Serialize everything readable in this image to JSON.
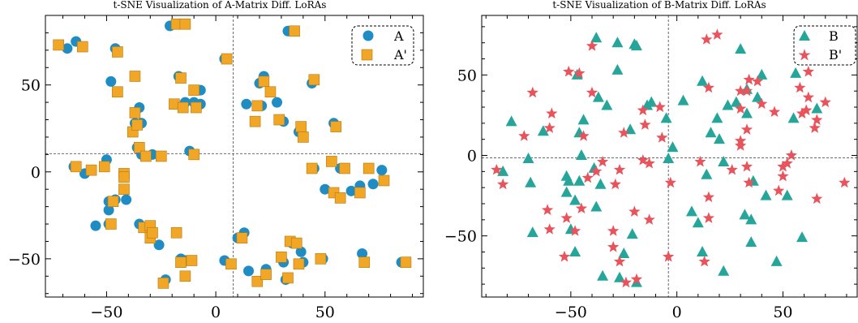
{
  "chart_data": [
    {
      "type": "scatter",
      "title": "t-SNE Visualization of A-Matrix Diff. LoRAs",
      "xlim": [
        -78,
        95
      ],
      "ylim": [
        -72,
        90
      ],
      "xticks": [
        -50,
        0,
        50
      ],
      "yticks": [
        -50,
        0,
        50
      ],
      "xlabel": "",
      "ylabel": "",
      "grid": false,
      "legend_placement": "top-right",
      "reference_lines": {
        "x": 8,
        "y": 10.5
      },
      "series": [
        {
          "name": "A",
          "marker": "circle",
          "color": "#1f8dc4",
          "points": [
            [
              -68,
              71
            ],
            [
              -64,
              75
            ],
            [
              -46,
              71
            ],
            [
              -48,
              52
            ],
            [
              -35,
              37
            ],
            [
              -37,
              28
            ],
            [
              -34,
              28
            ],
            [
              -34,
              10
            ],
            [
              -29,
              10
            ],
            [
              -36,
              14
            ],
            [
              -21,
              84
            ],
            [
              -17,
              55
            ],
            [
              -14,
              40
            ],
            [
              -12,
              12
            ],
            [
              -10,
              40
            ],
            [
              -7,
              47
            ],
            [
              -7,
              39
            ],
            [
              4,
              65
            ],
            [
              14,
              39
            ],
            [
              20,
              51
            ],
            [
              21,
              38
            ],
            [
              22,
              55
            ],
            [
              28,
              40
            ],
            [
              31,
              29
            ],
            [
              33,
              81
            ],
            [
              38,
              23
            ],
            [
              44,
              51
            ],
            [
              45,
              2
            ],
            [
              50,
              -10
            ],
            [
              54,
              28
            ],
            [
              57,
              2
            ],
            [
              62,
              -11
            ],
            [
              66,
              -8
            ],
            [
              72,
              -7
            ],
            [
              76,
              1
            ],
            [
              -65,
              3
            ],
            [
              -60,
              -1
            ],
            [
              -50,
              7
            ],
            [
              -49,
              -17
            ],
            [
              -49,
              -22
            ],
            [
              -49,
              -30
            ],
            [
              -41,
              -16
            ],
            [
              -46,
              -16
            ],
            [
              -55,
              -31
            ],
            [
              -35,
              -30
            ],
            [
              -26,
              -42
            ],
            [
              -23,
              -62
            ],
            [
              -16,
              -50
            ],
            [
              -14,
              -51
            ],
            [
              4,
              -51
            ],
            [
              10,
              -38
            ],
            [
              13,
              -35
            ],
            [
              15,
              -57
            ],
            [
              23,
              -56
            ],
            [
              31,
              -52
            ],
            [
              32,
              -62
            ],
            [
              35,
              -41
            ],
            [
              39,
              -46
            ],
            [
              40,
              -52
            ],
            [
              49,
              -50
            ],
            [
              67,
              -47
            ],
            [
              85,
              -52
            ]
          ]
        },
        {
          "name": "A'",
          "marker": "square",
          "color": "#f2a626",
          "points": [
            [
              -72,
              73
            ],
            [
              -61,
              72
            ],
            [
              -45,
              69
            ],
            [
              -37,
              55
            ],
            [
              -45,
              46
            ],
            [
              -38,
              23
            ],
            [
              -36,
              27
            ],
            [
              -37,
              34
            ],
            [
              -35,
              14
            ],
            [
              -32,
              9
            ],
            [
              -25,
              9
            ],
            [
              -18,
              85
            ],
            [
              -14,
              85
            ],
            [
              -19,
              39
            ],
            [
              -16,
              54
            ],
            [
              -15,
              37
            ],
            [
              -10,
              47
            ],
            [
              -9,
              37
            ],
            [
              -10,
              10
            ],
            [
              5,
              65
            ],
            [
              18,
              29
            ],
            [
              19,
              38
            ],
            [
              22,
              52
            ],
            [
              25,
              46
            ],
            [
              29,
              30
            ],
            [
              36,
              81
            ],
            [
              39,
              26
            ],
            [
              40,
              20
            ],
            [
              44,
              2
            ],
            [
              45,
              53
            ],
            [
              53,
              6
            ],
            [
              55,
              26
            ],
            [
              54,
              -12
            ],
            [
              57,
              -15
            ],
            [
              59,
              2
            ],
            [
              66,
              -12
            ],
            [
              70,
              2
            ],
            [
              77,
              -5
            ],
            [
              -64,
              3
            ],
            [
              -57,
              1
            ],
            [
              -51,
              3
            ],
            [
              -47,
              -17
            ],
            [
              -48,
              -30
            ],
            [
              -42,
              -1
            ],
            [
              -42,
              -10
            ],
            [
              -42,
              -3
            ],
            [
              -33,
              -32
            ],
            [
              -30,
              -31
            ],
            [
              -30,
              -38
            ],
            [
              -29,
              -35
            ],
            [
              -24,
              -64
            ],
            [
              -18,
              -35
            ],
            [
              -16,
              -52
            ],
            [
              -14,
              -60
            ],
            [
              -11,
              -51
            ],
            [
              7,
              -53
            ],
            [
              12,
              -38
            ],
            [
              19,
              -63
            ],
            [
              23,
              -59
            ],
            [
              30,
              -49
            ],
            [
              33,
              -61
            ],
            [
              34,
              -40
            ],
            [
              37,
              -41
            ],
            [
              38,
              -53
            ],
            [
              48,
              -50
            ],
            [
              68,
              -52
            ],
            [
              87,
              -52
            ]
          ]
        }
      ]
    },
    {
      "type": "scatter",
      "title": "t-SNE Visualization of B-Matrix Diff. LoRAs",
      "xlim": [
        -92,
        85
      ],
      "ylim": [
        -88,
        87
      ],
      "xticks": [
        -50,
        0,
        50
      ],
      "yticks": [
        -50,
        0,
        50
      ],
      "xlabel": "",
      "ylabel": "",
      "grid": false,
      "legend_placement": "top-right",
      "reference_lines": {
        "x": -4,
        "y": -1.5
      },
      "series": [
        {
          "name": "B",
          "marker": "triangle",
          "color": "#26a69a",
          "points": [
            [
              -38,
              73
            ],
            [
              -28,
              70
            ],
            [
              -20,
              69
            ],
            [
              -19,
              68
            ],
            [
              -28,
              53
            ],
            [
              -47,
              50
            ],
            [
              -37,
              36
            ],
            [
              -33,
              31
            ],
            [
              -44,
              22
            ],
            [
              -14,
              31
            ],
            [
              -12,
              33
            ],
            [
              -5,
              23
            ],
            [
              -22,
              16
            ],
            [
              -46,
              14
            ],
            [
              -63,
              15
            ],
            [
              -78,
              21
            ],
            [
              -70,
              -2
            ],
            [
              -82,
              -10
            ],
            [
              -69,
              -17
            ],
            [
              -52,
              -13
            ],
            [
              -51,
              -16
            ],
            [
              -48,
              -28
            ],
            [
              -52,
              -23
            ],
            [
              -46,
              -16
            ],
            [
              -39,
              -8
            ],
            [
              -36,
              -18
            ],
            [
              -45,
              0
            ],
            [
              -38,
              -32
            ],
            [
              -50,
              -46
            ],
            [
              -68,
              -48
            ],
            [
              -35,
              -75
            ],
            [
              -27,
              -76
            ],
            [
              -19,
              -79
            ],
            [
              -21,
              -49
            ],
            [
              -4,
              -2
            ],
            [
              -2,
              5
            ],
            [
              3,
              34
            ],
            [
              7,
              -35
            ],
            [
              10,
              -42
            ],
            [
              12,
              -60
            ],
            [
              14,
              -12
            ],
            [
              16,
              14
            ],
            [
              19,
              23
            ],
            [
              20,
              10
            ],
            [
              22,
              -4
            ],
            [
              24,
              31
            ],
            [
              28,
              33
            ],
            [
              30,
              66
            ],
            [
              33,
              41
            ],
            [
              33,
              26
            ],
            [
              36,
              -16
            ],
            [
              38,
              36
            ],
            [
              40,
              50
            ],
            [
              32,
              -37
            ],
            [
              35,
              -40
            ],
            [
              35,
              -54
            ],
            [
              42,
              -25
            ],
            [
              47,
              -66
            ],
            [
              52,
              -25
            ],
            [
              56,
              51
            ],
            [
              55,
              23
            ],
            [
              59,
              -51
            ],
            [
              66,
              29
            ],
            [
              12,
              46
            ],
            [
              -48,
              -60
            ],
            [
              -25,
              -61
            ],
            [
              22,
              -72
            ]
          ]
        },
        {
          "name": "B'",
          "marker": "star",
          "color": "#e8535c",
          "points": [
            [
              -40,
              68
            ],
            [
              -51,
              52
            ],
            [
              -46,
              51
            ],
            [
              -40,
              39
            ],
            [
              -68,
              39
            ],
            [
              -72,
              12
            ],
            [
              -59,
              26
            ],
            [
              -60,
              17
            ],
            [
              -44,
              12
            ],
            [
              -25,
              14
            ],
            [
              -15,
              19
            ],
            [
              -16,
              28
            ],
            [
              -8,
              30
            ],
            [
              -7,
              11
            ],
            [
              -16,
              -3
            ],
            [
              -27,
              -9
            ],
            [
              -29,
              -18
            ],
            [
              -38,
              -10
            ],
            [
              -42,
              -14
            ],
            [
              -45,
              -33
            ],
            [
              -52,
              -39
            ],
            [
              -48,
              -47
            ],
            [
              -60,
              -46
            ],
            [
              -53,
              -63
            ],
            [
              -30,
              -47
            ],
            [
              -30,
              -57
            ],
            [
              -27,
              -66
            ],
            [
              -24,
              -79
            ],
            [
              -19,
              -77
            ],
            [
              -4,
              -63
            ],
            [
              -3,
              -17
            ],
            [
              -13,
              -5
            ],
            [
              -13,
              -40
            ],
            [
              11,
              -4
            ],
            [
              13,
              -66
            ],
            [
              15,
              -26
            ],
            [
              15,
              -39
            ],
            [
              14,
              72
            ],
            [
              15,
              42
            ],
            [
              19,
              75
            ],
            [
              30,
              40
            ],
            [
              30,
              29
            ],
            [
              33,
              40
            ],
            [
              34,
              47
            ],
            [
              38,
              46
            ],
            [
              40,
              32
            ],
            [
              30,
              9
            ],
            [
              33,
              16
            ],
            [
              34,
              -17
            ],
            [
              46,
              27
            ],
            [
              48,
              -22
            ],
            [
              50,
              -13
            ],
            [
              50,
              -7
            ],
            [
              52,
              -5
            ],
            [
              54,
              0
            ],
            [
              58,
              42
            ],
            [
              59,
              26
            ],
            [
              61,
              28
            ],
            [
              62,
              52
            ],
            [
              62,
              36
            ],
            [
              65,
              17
            ],
            [
              66,
              22
            ],
            [
              66,
              -27
            ],
            [
              70,
              33
            ],
            [
              79,
              -17
            ],
            [
              -85,
              -9
            ],
            [
              -82,
              -18
            ],
            [
              -61,
              -34
            ],
            [
              -35,
              -4
            ],
            [
              -20,
              -35
            ],
            [
              30,
              6
            ],
            [
              33,
              -7
            ],
            [
              26,
              -9
            ]
          ]
        }
      ]
    }
  ]
}
